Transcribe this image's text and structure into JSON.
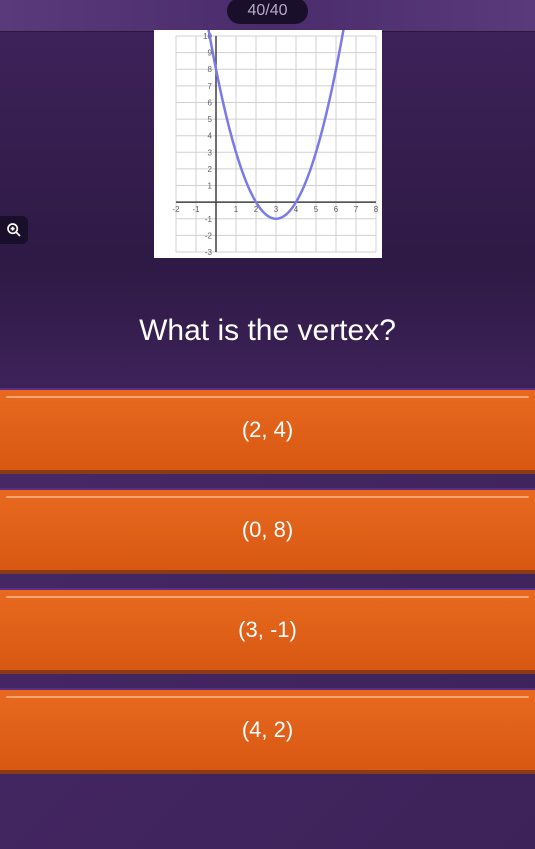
{
  "counter": "40/40",
  "question": "What is the vertex?",
  "answers": [
    {
      "label": "(2, 4)"
    },
    {
      "label": "(0, 8)"
    },
    {
      "label": "(3, -1)"
    },
    {
      "label": "(4, 2)"
    }
  ],
  "answer_style": {
    "bg_gradient_top": "#e8691f",
    "bg_gradient_bottom": "#d85812",
    "highlight": "#f5a572",
    "text_color": "#ffffff",
    "fontsize": 22,
    "separator_top": "#5a2f85",
    "separator_bottom": "#8a3a15"
  },
  "background": {
    "dark_purple": "#2e1a45",
    "mid_purple": "#3d2259",
    "light_purple": "#5a3a7a"
  },
  "chart": {
    "type": "line-parabola",
    "background_color": "#ffffff",
    "grid_color": "#d0d0d0",
    "axis_color": "#404040",
    "curve_color": "#7a7ae8",
    "curve_width": 2.5,
    "x_range": [
      -2,
      8
    ],
    "y_range": [
      -3,
      10
    ],
    "x_ticks": [
      -2,
      -1,
      1,
      2,
      3,
      4,
      5,
      6,
      7,
      8
    ],
    "y_ticks": [
      -3,
      -2,
      -1,
      1,
      2,
      3,
      4,
      5,
      6,
      7,
      8,
      9,
      10
    ],
    "tick_fontsize": 8,
    "tick_color": "#606060",
    "vertex": [
      3,
      -1
    ],
    "a": 1
  }
}
